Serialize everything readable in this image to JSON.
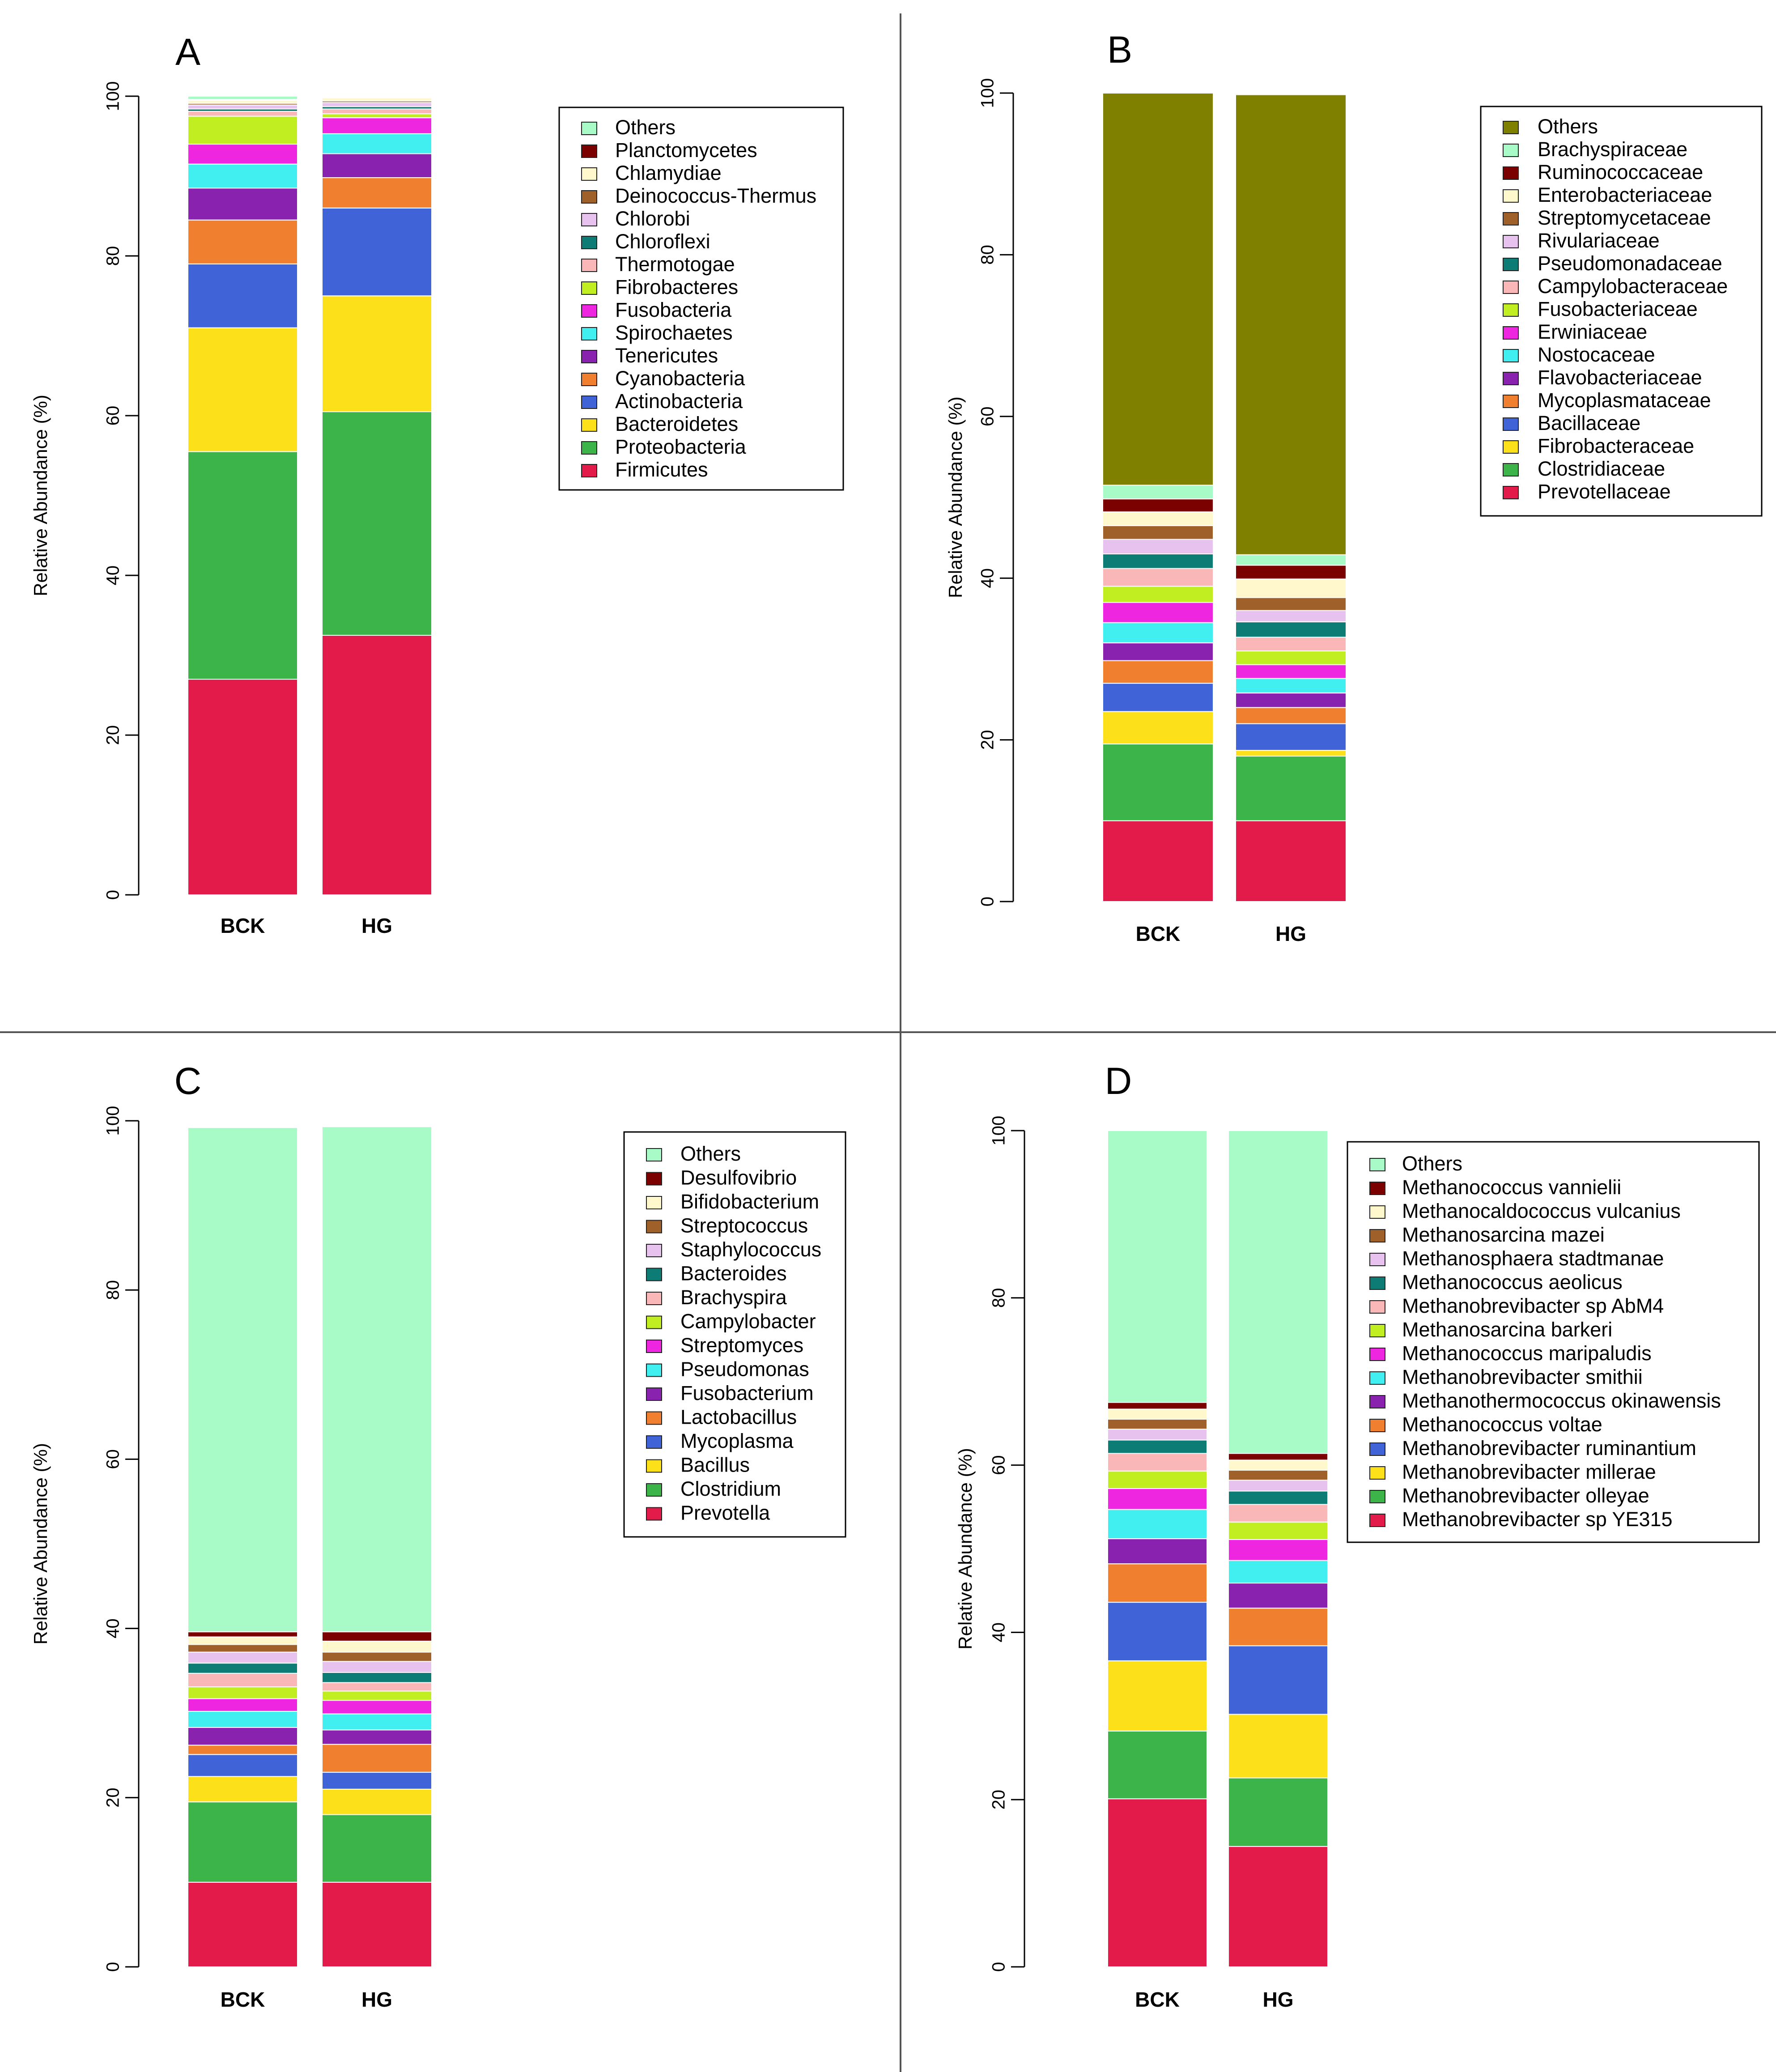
{
  "colors": {
    "others_light": "#a8fbc6",
    "others_olive": "#808000",
    "dark_red": "#7b0000",
    "cream": "#fff8cc",
    "brown": "#a0602a",
    "lavender": "#e8c2ee",
    "teal": "#0c7c74",
    "pink": "#f9b7b7",
    "lime": "#c0ee20",
    "magenta": "#ee26e0",
    "cyan": "#41eef0",
    "purple": "#8a22b0",
    "orange": "#f07f30",
    "blue": "#4064d8",
    "yellow": "#fbe01a",
    "green": "#3cb44a",
    "crimson": "#e31b4b"
  },
  "chart_data": [
    {
      "id": "A",
      "panel_label": "A",
      "type": "bar",
      "stacked": true,
      "ylabel": "Relative Abundance (%)",
      "ylim": [
        0,
        100
      ],
      "yticks": [
        "0",
        "20",
        "40",
        "60",
        "80",
        "100"
      ],
      "categories": [
        "BCK",
        "HG"
      ],
      "legend_position": "top-right",
      "series": [
        {
          "name": "Firmicutes",
          "color": "crimson",
          "values": [
            27.0,
            32.5
          ]
        },
        {
          "name": "Proteobacteria",
          "color": "green",
          "values": [
            28.5,
            28.0
          ]
        },
        {
          "name": "Bacteroidetes",
          "color": "yellow",
          "values": [
            15.5,
            14.5
          ]
        },
        {
          "name": "Actinobacteria",
          "color": "blue",
          "values": [
            8.0,
            11.0
          ]
        },
        {
          "name": "Cyanobacteria",
          "color": "orange",
          "values": [
            5.5,
            3.8
          ]
        },
        {
          "name": "Tenericutes",
          "color": "purple",
          "values": [
            4.0,
            3.0
          ]
        },
        {
          "name": "Spirochaetes",
          "color": "cyan",
          "values": [
            3.0,
            2.5
          ]
        },
        {
          "name": "Fusobacteria",
          "color": "magenta",
          "values": [
            2.5,
            2.0
          ]
        },
        {
          "name": "Fibrobacteres",
          "color": "lime",
          "values": [
            3.5,
            0.5
          ]
        },
        {
          "name": "Thermotogae",
          "color": "pink",
          "values": [
            0.6,
            0.6
          ]
        },
        {
          "name": "Chloroflexi",
          "color": "teal",
          "values": [
            0.3,
            0.3
          ]
        },
        {
          "name": "Chlorobi",
          "color": "lavender",
          "values": [
            0.5,
            0.5
          ]
        },
        {
          "name": "Deinococcus-Thermus",
          "color": "brown",
          "values": [
            0.2,
            0.2
          ]
        },
        {
          "name": "Chlamydiae",
          "color": "cream",
          "values": [
            0.4,
            0.4
          ]
        },
        {
          "name": "Planctomycetes",
          "color": "dark_red",
          "values": [
            0.1,
            0.1
          ]
        },
        {
          "name": "Others",
          "color": "others_light",
          "values": [
            0.4,
            0.1
          ]
        }
      ]
    },
    {
      "id": "B",
      "panel_label": "B",
      "type": "bar",
      "stacked": true,
      "ylabel": "Relative Abundance (%)",
      "ylim": [
        0,
        100
      ],
      "yticks": [
        "0",
        "20",
        "40",
        "60",
        "80",
        "100"
      ],
      "categories": [
        "BCK",
        "HG"
      ],
      "legend_position": "top-right",
      "series": [
        {
          "name": "Prevotellaceae",
          "color": "crimson",
          "values": [
            10.0,
            10.0
          ]
        },
        {
          "name": "Clostridiaceae",
          "color": "green",
          "values": [
            9.5,
            8.0
          ]
        },
        {
          "name": "Fibrobacteraceae",
          "color": "yellow",
          "values": [
            4.0,
            0.7
          ]
        },
        {
          "name": "Bacillaceae",
          "color": "blue",
          "values": [
            3.5,
            3.3
          ]
        },
        {
          "name": "Mycoplasmataceae",
          "color": "orange",
          "values": [
            2.8,
            2.0
          ]
        },
        {
          "name": "Flavobacteriaceae",
          "color": "purple",
          "values": [
            2.2,
            1.8
          ]
        },
        {
          "name": "Nostocaceae",
          "color": "cyan",
          "values": [
            2.5,
            1.8
          ]
        },
        {
          "name": "Erwiniaceae",
          "color": "magenta",
          "values": [
            2.5,
            1.7
          ]
        },
        {
          "name": "Fusobacteriaceae",
          "color": "lime",
          "values": [
            2.0,
            1.7
          ]
        },
        {
          "name": "Campylobacteraceae",
          "color": "pink",
          "values": [
            2.2,
            1.7
          ]
        },
        {
          "name": "Pseudomonadaceae",
          "color": "teal",
          "values": [
            1.8,
            1.9
          ]
        },
        {
          "name": "Rivulariaceae",
          "color": "lavender",
          "values": [
            1.8,
            1.4
          ]
        },
        {
          "name": "Streptomycetaceae",
          "color": "brown",
          "values": [
            1.7,
            1.6
          ]
        },
        {
          "name": "Enterobacteriaceae",
          "color": "cream",
          "values": [
            1.7,
            2.3
          ]
        },
        {
          "name": "Ruminococcaceae",
          "color": "dark_red",
          "values": [
            1.6,
            1.7
          ]
        },
        {
          "name": "Brachyspiraceae",
          "color": "others_light",
          "values": [
            1.7,
            1.3
          ]
        },
        {
          "name": "Others",
          "color": "others_olive",
          "values": [
            48.5,
            56.9
          ]
        }
      ]
    },
    {
      "id": "C",
      "panel_label": "C",
      "type": "bar",
      "stacked": true,
      "ylabel": "Relative Abundance (%)",
      "ylim": [
        0,
        100
      ],
      "yticks": [
        "0",
        "20",
        "40",
        "60",
        "80",
        "100"
      ],
      "categories": [
        "BCK",
        "HG"
      ],
      "legend_position": "top-right",
      "series": [
        {
          "name": "Prevotella",
          "color": "crimson",
          "values": [
            10.0,
            10.0
          ]
        },
        {
          "name": "Clostridium",
          "color": "green",
          "values": [
            9.5,
            8.0
          ]
        },
        {
          "name": "Bacillus",
          "color": "yellow",
          "values": [
            3.0,
            3.0
          ]
        },
        {
          "name": "Mycoplasma",
          "color": "blue",
          "values": [
            2.6,
            2.0
          ]
        },
        {
          "name": "Lactobacillus",
          "color": "orange",
          "values": [
            1.1,
            3.3
          ]
        },
        {
          "name": "Fusobacterium",
          "color": "purple",
          "values": [
            2.1,
            1.7
          ]
        },
        {
          "name": "Pseudomonas",
          "color": "cyan",
          "values": [
            1.9,
            1.9
          ]
        },
        {
          "name": "Streptomyces",
          "color": "magenta",
          "values": [
            1.5,
            1.6
          ]
        },
        {
          "name": "Campylobacter",
          "color": "lime",
          "values": [
            1.4,
            1.1
          ]
        },
        {
          "name": "Brachyspira",
          "color": "pink",
          "values": [
            1.6,
            1.0
          ]
        },
        {
          "name": "Bacteroides",
          "color": "teal",
          "values": [
            1.2,
            1.2
          ]
        },
        {
          "name": "Staphylococcus",
          "color": "lavender",
          "values": [
            1.3,
            1.3
          ]
        },
        {
          "name": "Streptococcus",
          "color": "brown",
          "values": [
            0.9,
            1.1
          ]
        },
        {
          "name": "Bifidobacterium",
          "color": "cream",
          "values": [
            0.9,
            1.3
          ]
        },
        {
          "name": "Desulfovibrio",
          "color": "dark_red",
          "values": [
            0.6,
            1.1
          ]
        },
        {
          "name": "Others",
          "color": "others_light",
          "values": [
            59.6,
            59.7
          ]
        }
      ]
    },
    {
      "id": "D",
      "panel_label": "D",
      "type": "bar",
      "stacked": true,
      "ylabel": "Relative Abundance (%)",
      "ylim": [
        0,
        100
      ],
      "yticks": [
        "0",
        "20",
        "40",
        "60",
        "80",
        "100"
      ],
      "categories": [
        "BCK",
        "HG"
      ],
      "legend_position": "top-right",
      "series": [
        {
          "name": "Methanobrevibacter sp YE315",
          "color": "crimson",
          "values": [
            20.1,
            14.4
          ]
        },
        {
          "name": "Methanobrevibacter olleyae",
          "color": "green",
          "values": [
            8.1,
            8.2
          ]
        },
        {
          "name": "Methanobrevibacter millerae",
          "color": "yellow",
          "values": [
            8.4,
            7.6
          ]
        },
        {
          "name": "Methanobrevibacter ruminantium",
          "color": "blue",
          "values": [
            7.0,
            8.2
          ]
        },
        {
          "name": "Methanococcus voltae",
          "color": "orange",
          "values": [
            4.6,
            4.5
          ]
        },
        {
          "name": "Methanothermococcus okinawensis",
          "color": "purple",
          "values": [
            3.0,
            3.0
          ]
        },
        {
          "name": "Methanobrevibacter smithii",
          "color": "cyan",
          "values": [
            3.5,
            2.7
          ]
        },
        {
          "name": "Methanococcus maripaludis",
          "color": "magenta",
          "values": [
            2.5,
            2.5
          ]
        },
        {
          "name": "Methanosarcina barkeri",
          "color": "lime",
          "values": [
            2.1,
            2.1
          ]
        },
        {
          "name": "Methanobrevibacter sp AbM4",
          "color": "pink",
          "values": [
            2.1,
            2.1
          ]
        },
        {
          "name": "Methanococcus aeolicus",
          "color": "teal",
          "values": [
            1.6,
            1.6
          ]
        },
        {
          "name": "Methanosphaera stadtmanae",
          "color": "lavender",
          "values": [
            1.3,
            1.3
          ]
        },
        {
          "name": "Methanosarcina mazei",
          "color": "brown",
          "values": [
            1.2,
            1.2
          ]
        },
        {
          "name": "Methanocaldococcus vulcanius",
          "color": "cream",
          "values": [
            1.2,
            1.2
          ]
        },
        {
          "name": "Methanococcus vannielii",
          "color": "dark_red",
          "values": [
            0.8,
            0.8
          ]
        },
        {
          "name": "Others",
          "color": "others_light",
          "values": [
            32.5,
            38.6
          ]
        }
      ]
    }
  ]
}
